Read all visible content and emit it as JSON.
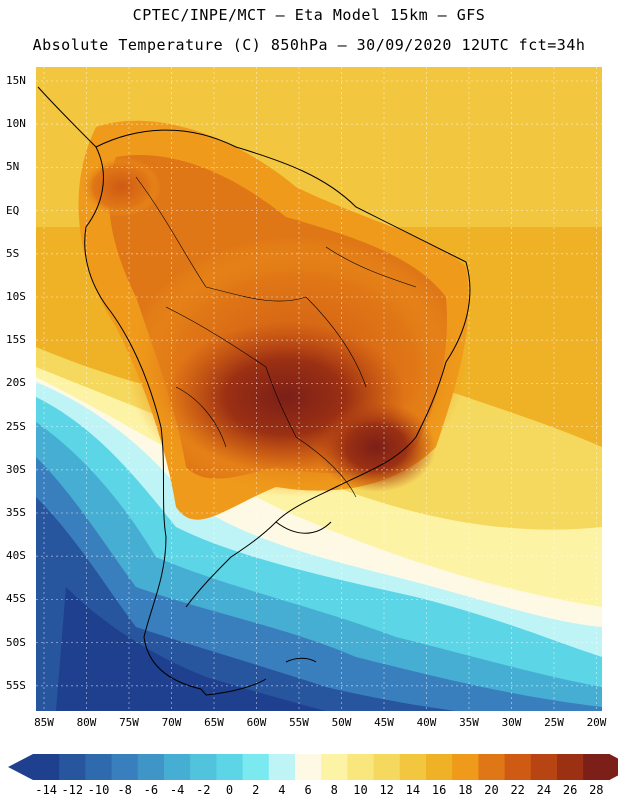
{
  "header": {
    "line1": "CPTEC/INPE/MCT –  Eta Model 15km – GFS",
    "line2": "Absolute Temperature (C) 850hPa – 30/09/2020 12UTC fct=34h"
  },
  "map": {
    "lat_labels": [
      "15N",
      "10N",
      "5N",
      "EQ",
      "5S",
      "10S",
      "15S",
      "20S",
      "25S",
      "30S",
      "35S",
      "40S",
      "45S",
      "50S",
      "55S"
    ],
    "lon_labels": [
      "85W",
      "80W",
      "75W",
      "70W",
      "65W",
      "60W",
      "55W",
      "50W",
      "45W",
      "40W",
      "35W",
      "30W",
      "25W",
      "20W"
    ],
    "lon_range": [
      -85,
      -20
    ],
    "lat_range": [
      -58,
      17
    ]
  },
  "colorbar": {
    "levels": [
      "-14",
      "-12",
      "-10",
      "-8",
      "-6",
      "-4",
      "-2",
      "0",
      "2",
      "4",
      "6",
      "8",
      "10",
      "12",
      "14",
      "16",
      "18",
      "20",
      "22",
      "24",
      "26",
      "28"
    ],
    "colors": [
      "#1f3f8f",
      "#27559e",
      "#2f6aae",
      "#3a7fbd",
      "#3f96c6",
      "#47aed3",
      "#52c3dc",
      "#5cd6e6",
      "#7aeaf0",
      "#bff4f7",
      "#fdf9e4",
      "#fdf3a4",
      "#f9e77d",
      "#f5d85e",
      "#f3c63f",
      "#efb125",
      "#ef9a1b",
      "#e07716",
      "#cf5a14",
      "#b84413",
      "#9b3013",
      "#7b1f18"
    ]
  }
}
